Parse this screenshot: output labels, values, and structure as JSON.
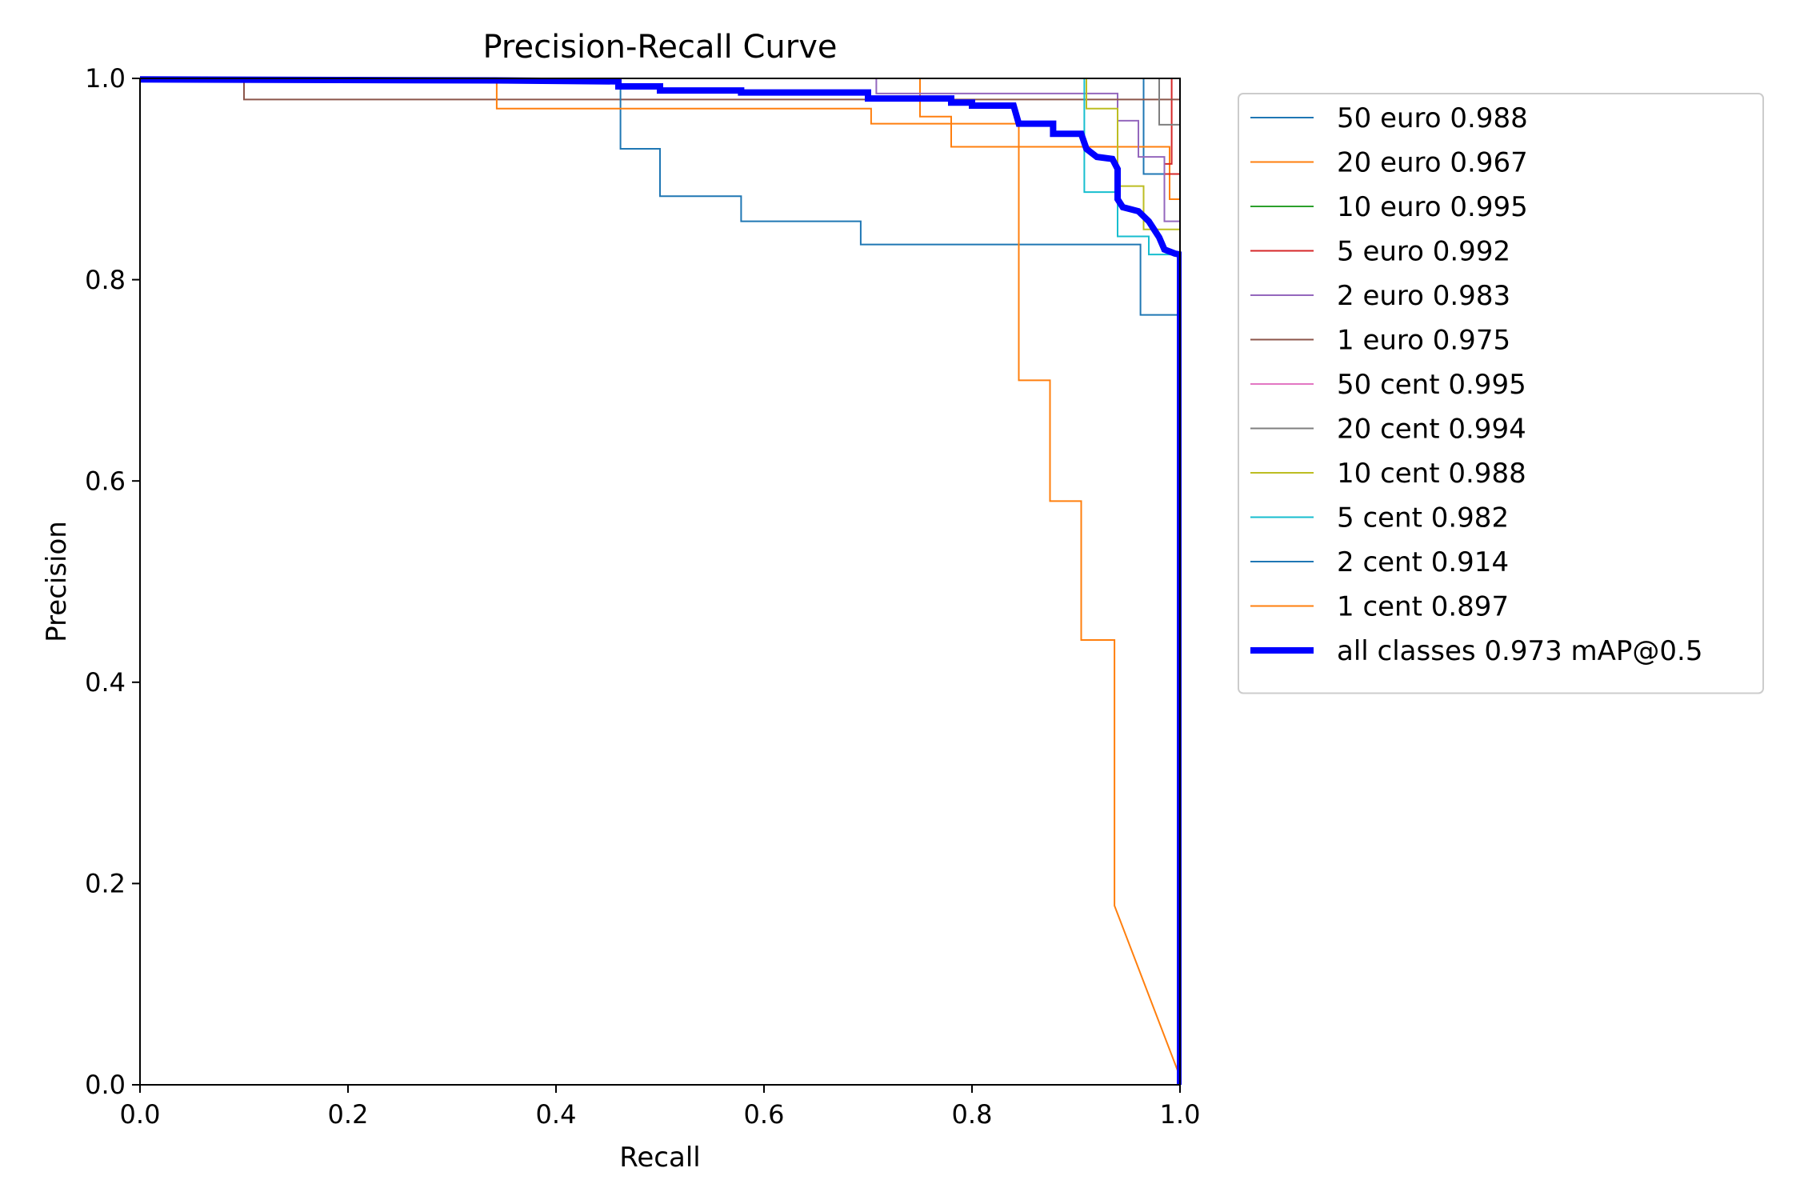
{
  "chart_data": {
    "type": "line",
    "title": "Precision-Recall Curve",
    "xlabel": "Recall",
    "ylabel": "Precision",
    "xlim": [
      0.0,
      1.0
    ],
    "ylim": [
      0.0,
      1.0
    ],
    "xticks": [
      "0.0",
      "0.2",
      "0.4",
      "0.6",
      "0.8",
      "1.0"
    ],
    "yticks": [
      "0.0",
      "0.2",
      "0.4",
      "0.6",
      "0.8",
      "1.0"
    ],
    "grid": false,
    "legend_position": "outside-right-top",
    "series": [
      {
        "name": "50 euro 0.988",
        "color": "#1f77b4",
        "points": [
          [
            0.0,
            1.0
          ],
          [
            0.965,
            1.0
          ],
          [
            0.965,
            0.905
          ],
          [
            1.0,
            0.905
          ],
          [
            1.0,
            0.0
          ]
        ]
      },
      {
        "name": "20 euro 0.967",
        "color": "#ff7f0e",
        "points": [
          [
            0.0,
            1.0
          ],
          [
            0.75,
            1.0
          ],
          [
            0.75,
            0.962
          ],
          [
            0.78,
            0.962
          ],
          [
            0.78,
            0.932
          ],
          [
            0.99,
            0.932
          ],
          [
            0.99,
            0.88
          ],
          [
            1.0,
            0.88
          ],
          [
            1.0,
            0.0
          ]
        ]
      },
      {
        "name": "10 euro 0.995",
        "color": "#2ca02c",
        "points": [
          [
            0.0,
            1.0
          ],
          [
            1.0,
            1.0
          ],
          [
            1.0,
            0.0
          ]
        ]
      },
      {
        "name": "5 euro 0.992",
        "color": "#d62728",
        "points": [
          [
            0.0,
            1.0
          ],
          [
            0.992,
            1.0
          ],
          [
            0.992,
            0.915
          ],
          [
            0.985,
            0.915
          ],
          [
            0.985,
            0.905
          ],
          [
            1.0,
            0.905
          ],
          [
            1.0,
            0.0
          ]
        ]
      },
      {
        "name": "2 euro 0.983",
        "color": "#9467bd",
        "points": [
          [
            0.0,
            1.0
          ],
          [
            0.708,
            1.0
          ],
          [
            0.708,
            0.985
          ],
          [
            0.94,
            0.985
          ],
          [
            0.94,
            0.958
          ],
          [
            0.96,
            0.958
          ],
          [
            0.96,
            0.922
          ],
          [
            0.985,
            0.922
          ],
          [
            0.985,
            0.858
          ],
          [
            1.0,
            0.858
          ],
          [
            1.0,
            0.0
          ]
        ]
      },
      {
        "name": "1 euro 0.975",
        "color": "#8c564b",
        "points": [
          [
            0.0,
            1.0
          ],
          [
            0.1,
            1.0
          ],
          [
            0.1,
            0.979
          ],
          [
            1.0,
            0.979
          ],
          [
            1.0,
            0.0
          ]
        ]
      },
      {
        "name": "50 cent 0.995",
        "color": "#e377c2",
        "points": [
          [
            0.0,
            1.0
          ],
          [
            1.0,
            1.0
          ],
          [
            1.0,
            0.0
          ]
        ]
      },
      {
        "name": "20 cent 0.994",
        "color": "#7f7f7f",
        "points": [
          [
            0.0,
            1.0
          ],
          [
            0.98,
            1.0
          ],
          [
            0.98,
            0.954
          ],
          [
            1.0,
            0.954
          ],
          [
            1.0,
            0.0
          ]
        ]
      },
      {
        "name": "10 cent 0.988",
        "color": "#bcbd22",
        "points": [
          [
            0.0,
            1.0
          ],
          [
            0.91,
            1.0
          ],
          [
            0.91,
            0.97
          ],
          [
            0.94,
            0.97
          ],
          [
            0.94,
            0.893
          ],
          [
            0.965,
            0.893
          ],
          [
            0.965,
            0.85
          ],
          [
            1.0,
            0.85
          ],
          [
            1.0,
            0.0
          ]
        ]
      },
      {
        "name": "5 cent 0.982",
        "color": "#17becf",
        "points": [
          [
            0.0,
            1.0
          ],
          [
            0.908,
            1.0
          ],
          [
            0.908,
            0.887
          ],
          [
            0.94,
            0.887
          ],
          [
            0.94,
            0.843
          ],
          [
            0.97,
            0.843
          ],
          [
            0.97,
            0.825
          ],
          [
            1.0,
            0.825
          ],
          [
            1.0,
            0.0
          ]
        ]
      },
      {
        "name": "2 cent 0.914",
        "color": "#1f77b4",
        "points": [
          [
            0.0,
            1.0
          ],
          [
            0.462,
            1.0
          ],
          [
            0.462,
            0.93
          ],
          [
            0.5,
            0.93
          ],
          [
            0.5,
            0.883
          ],
          [
            0.578,
            0.883
          ],
          [
            0.578,
            0.858
          ],
          [
            0.693,
            0.858
          ],
          [
            0.693,
            0.835
          ],
          [
            0.962,
            0.835
          ],
          [
            0.962,
            0.765
          ],
          [
            1.0,
            0.765
          ],
          [
            1.0,
            0.0
          ]
        ]
      },
      {
        "name": "1 cent 0.897",
        "color": "#ff7f0e",
        "points": [
          [
            0.0,
            1.0
          ],
          [
            0.343,
            1.0
          ],
          [
            0.343,
            0.97
          ],
          [
            0.703,
            0.97
          ],
          [
            0.703,
            0.955
          ],
          [
            0.845,
            0.955
          ],
          [
            0.845,
            0.932
          ],
          [
            0.845,
            0.7
          ],
          [
            0.875,
            0.7
          ],
          [
            0.875,
            0.58
          ],
          [
            0.905,
            0.58
          ],
          [
            0.905,
            0.442
          ],
          [
            0.937,
            0.442
          ],
          [
            0.937,
            0.178
          ],
          [
            1.0,
            0.008
          ]
        ]
      },
      {
        "name": "all classes 0.973 mAP@0.5",
        "color": "#0000ff",
        "thick": true,
        "points": [
          [
            0.0,
            0.999
          ],
          [
            0.34,
            0.998
          ],
          [
            0.46,
            0.997
          ],
          [
            0.46,
            0.992
          ],
          [
            0.5,
            0.992
          ],
          [
            0.5,
            0.988
          ],
          [
            0.578,
            0.988
          ],
          [
            0.578,
            0.986
          ],
          [
            0.7,
            0.986
          ],
          [
            0.7,
            0.98
          ],
          [
            0.78,
            0.98
          ],
          [
            0.78,
            0.976
          ],
          [
            0.8,
            0.976
          ],
          [
            0.8,
            0.973
          ],
          [
            0.84,
            0.973
          ],
          [
            0.845,
            0.955
          ],
          [
            0.878,
            0.955
          ],
          [
            0.878,
            0.945
          ],
          [
            0.905,
            0.945
          ],
          [
            0.91,
            0.93
          ],
          [
            0.92,
            0.922
          ],
          [
            0.935,
            0.92
          ],
          [
            0.94,
            0.91
          ],
          [
            0.94,
            0.88
          ],
          [
            0.945,
            0.872
          ],
          [
            0.96,
            0.868
          ],
          [
            0.97,
            0.858
          ],
          [
            0.975,
            0.85
          ],
          [
            0.98,
            0.842
          ],
          [
            0.985,
            0.83
          ],
          [
            0.995,
            0.826
          ],
          [
            1.0,
            0.825
          ],
          [
            1.0,
            0.0
          ]
        ]
      }
    ]
  }
}
